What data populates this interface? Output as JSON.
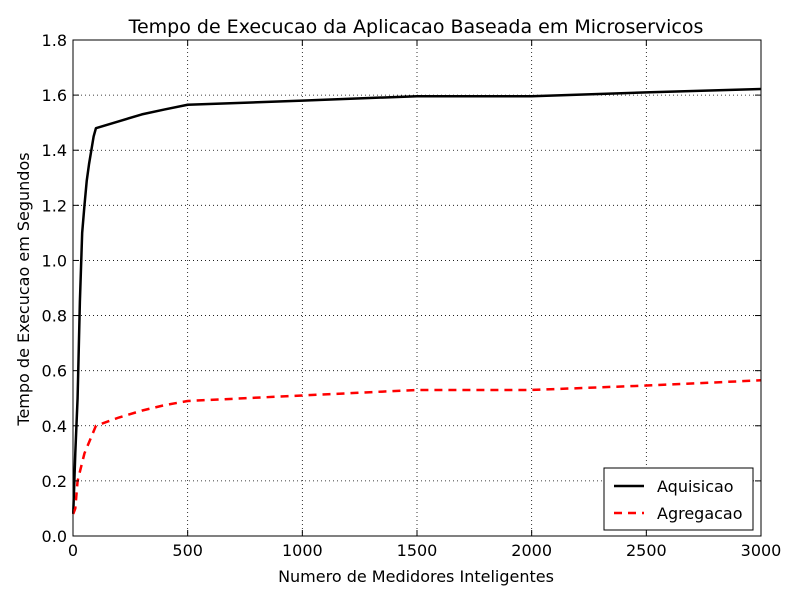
{
  "chart_data": {
    "type": "line",
    "title": "Tempo de Execucao da Aplicacao Baseada em Microservicos",
    "xlabel": "Numero de Medidores Inteligentes",
    "ylabel": "Tempo de Execucao em Segundos",
    "xlim": [
      0,
      3000
    ],
    "ylim": [
      0,
      1.8
    ],
    "x_ticks": [
      0,
      500,
      1000,
      1500,
      2000,
      2500,
      3000
    ],
    "y_ticks": [
      0.0,
      0.2,
      0.4,
      0.6,
      0.8,
      1.0,
      1.2,
      1.4,
      1.6,
      1.8
    ],
    "x_tick_labels": [
      "0",
      "500",
      "1000",
      "1500",
      "2000",
      "2500",
      "3000"
    ],
    "y_tick_labels": [
      "0.0",
      "0.2",
      "0.4",
      "0.6",
      "0.8",
      "1.0",
      "1.2",
      "1.4",
      "1.6",
      "1.8"
    ],
    "grid": true,
    "legend_position": "bottom-right",
    "series": [
      {
        "name": "Aquisicao",
        "color": "#000000",
        "line_style": "solid",
        "x": [
          1,
          10,
          20,
          30,
          40,
          50,
          60,
          70,
          80,
          90,
          100,
          200,
          300,
          400,
          500,
          1000,
          1500,
          2000,
          2500,
          3000
        ],
        "y": [
          0.08,
          0.3,
          0.5,
          0.85,
          1.1,
          1.2,
          1.29,
          1.35,
          1.4,
          1.45,
          1.48,
          1.505,
          1.53,
          1.548,
          1.565,
          1.58,
          1.596,
          1.596,
          1.61,
          1.622
        ]
      },
      {
        "name": "Agregacao",
        "color": "#ff0000",
        "line_style": "dashed",
        "x": [
          1,
          10,
          20,
          50,
          100,
          200,
          300,
          400,
          500,
          1000,
          1500,
          2000,
          2500,
          3000
        ],
        "y": [
          0.08,
          0.1,
          0.2,
          0.3,
          0.4,
          0.43,
          0.455,
          0.475,
          0.49,
          0.51,
          0.53,
          0.53,
          0.546,
          0.565
        ]
      }
    ]
  }
}
